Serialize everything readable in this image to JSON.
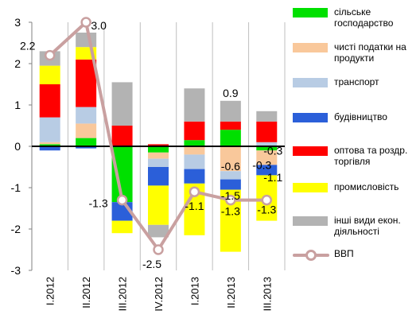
{
  "chart_data": {
    "type": "bar",
    "stacked": true,
    "categories": [
      "I.2012",
      "II.2012",
      "III.2012",
      "IV.2012",
      "I.2013",
      "II.2013",
      "III.2013"
    ],
    "ylim": [
      -3,
      3
    ],
    "yticks": [
      "-3",
      "-2",
      "-1",
      "0",
      "1",
      "2",
      "3"
    ],
    "grid": "vertical",
    "legend_position": "right",
    "series": [
      {
        "name": "сільське господарство",
        "color": "#00e000",
        "values": [
          0.05,
          0.2,
          -1.35,
          -0.15,
          0.15,
          0.4,
          -0.1
        ]
      },
      {
        "name": "чисті податки на продукти",
        "color": "#f9c89b",
        "values": [
          0.05,
          0.35,
          0,
          -0.15,
          -0.2,
          -0.6,
          -0.35
        ]
      },
      {
        "name": "транспорт",
        "color": "#b8cce4",
        "values": [
          0.6,
          0.4,
          0,
          -0.2,
          -0.35,
          -0.2,
          0.1
        ]
      },
      {
        "name": "будівництво",
        "color": "#2b5fd9",
        "values": [
          -0.1,
          -0.05,
          -0.45,
          -0.45,
          -0.35,
          -0.25,
          -0.25
        ]
      },
      {
        "name": "оптова та роздр. торгівля",
        "color": "#ff0000",
        "values": [
          0.8,
          1.15,
          0.5,
          0.05,
          0.45,
          0.2,
          0.5
        ]
      },
      {
        "name": "промисловість",
        "color": "#ffff00",
        "values": [
          0.45,
          0.3,
          -0.3,
          -0.95,
          -1.25,
          -1.5,
          -1.1
        ]
      },
      {
        "name": "інші види екон. діяльності",
        "color": "#b3b3b3",
        "values": [
          0.35,
          0.35,
          1.05,
          -0.3,
          0.8,
          0.5,
          0.25
        ]
      }
    ],
    "line": {
      "name": "ВВП",
      "color": "#c9a0a0",
      "values": [
        2.2,
        3.0,
        -1.3,
        -2.5,
        -1.1,
        -1.3,
        -1.3
      ]
    },
    "annotations": [
      {
        "category": "I.2012",
        "value": 2.2,
        "text": "2.2"
      },
      {
        "category": "II.2012",
        "value": 3.0,
        "text": "3.0"
      },
      {
        "category": "III.2012",
        "value": -1.3,
        "text": "-1.3"
      },
      {
        "category": "IV.2012",
        "value": -2.5,
        "text": "-2.5"
      },
      {
        "category": "I.2013",
        "value": -1.1,
        "text": "-1.1"
      },
      {
        "category": "II.2013",
        "value": -1.3,
        "text": "-1.3"
      },
      {
        "category": "II.2013",
        "value": 0.9,
        "text": "0.9"
      },
      {
        "category": "II.2013",
        "value": -0.6,
        "text": "-0.6"
      },
      {
        "category": "II.2013",
        "value": -1.5,
        "text": "-1.5"
      },
      {
        "category": "III.2013",
        "value": -1.1,
        "text": "-1.1"
      },
      {
        "category": "III.2013",
        "value": -1.3,
        "text": "-1.3"
      },
      {
        "category": "III.2013",
        "value": -0.3,
        "text": "-0.3"
      },
      {
        "category": "III.2013",
        "value": -0.3,
        "text": "-0.3"
      }
    ]
  },
  "legend": [
    {
      "label": "сільське господарство"
    },
    {
      "label": "чисті податки на продукти"
    },
    {
      "label": "транспорт"
    },
    {
      "label": "будівництво"
    },
    {
      "label": "оптова та роздр. торгівля"
    },
    {
      "label": "промисловість"
    },
    {
      "label": "інші види екон. діяльності"
    },
    {
      "label": "ВВП"
    }
  ]
}
